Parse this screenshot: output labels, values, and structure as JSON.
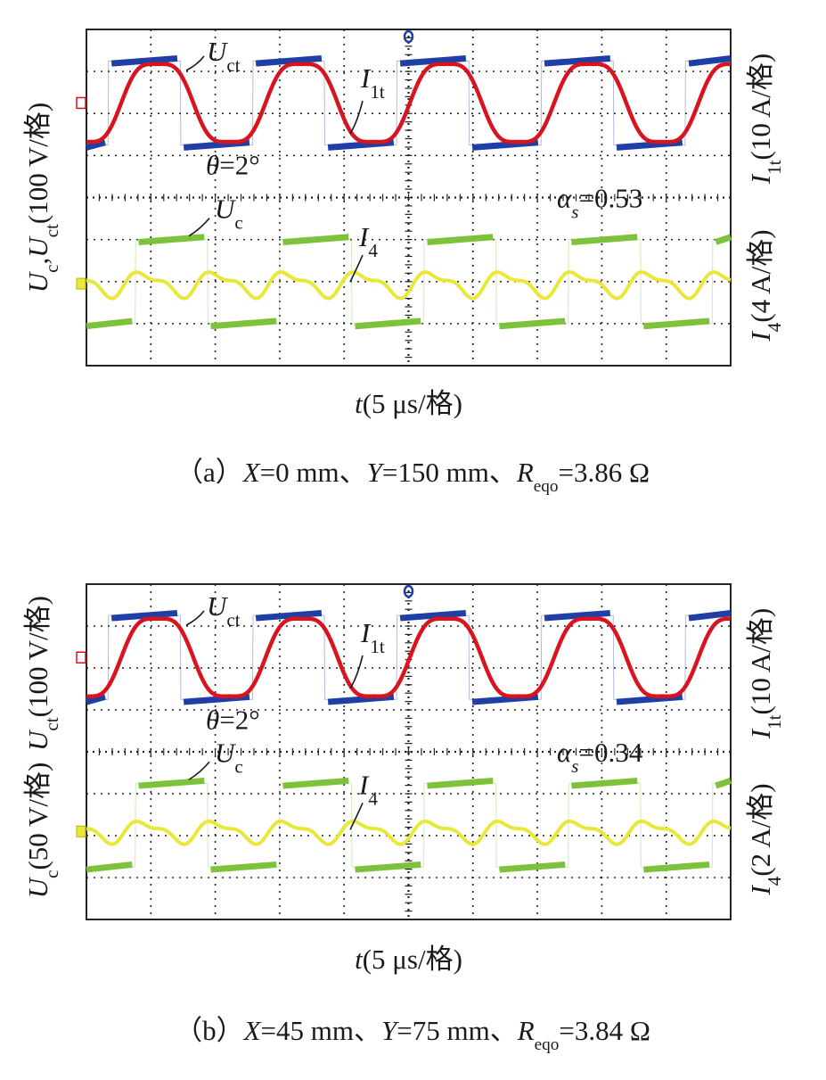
{
  "chart_data": [
    {
      "type": "line",
      "panel": "a",
      "caption": {
        "prefix": "（a）",
        "x_var": "X",
        "x_val": "=0 mm、",
        "y_var": "Y",
        "y_val": "=150 mm、",
        "r_var": "R",
        "r_sub": "eqo",
        "r_val": "=3.86 Ω"
      },
      "xlabel": {
        "var": "t",
        "unit": "(5 μs/格)"
      },
      "left_axis_label": "U_c,U_ct(100 V/格)",
      "left_axis_parts": [
        {
          "t": "U",
          "it": true
        },
        {
          "t": "c",
          "sub": true
        },
        {
          "t": ",",
          "it": false
        },
        {
          "t": "U",
          "it": true
        },
        {
          "t": "ct",
          "sub": true
        },
        {
          "t": "(100 V/格)",
          "it": false
        }
      ],
      "right_axis_upper": "I_1t(10 A/格)",
      "right_axis_upper_parts": [
        {
          "t": "I",
          "it": true
        },
        {
          "t": "1t",
          "sub": true
        },
        {
          "t": "(10 A/格)",
          "it": false
        }
      ],
      "right_axis_lower": "I_4(4 A/格)",
      "right_axis_lower_parts": [
        {
          "t": "I",
          "it": true
        },
        {
          "t": "4",
          "sub": true
        },
        {
          "t": "(4 A/格)",
          "it": false
        }
      ],
      "time_per_div_us": 5,
      "divisions": {
        "x": 10,
        "y": 8
      },
      "angle_label": {
        "sym": "θ",
        "val": "=2°"
      },
      "alpha_label": {
        "sym": "α",
        "sub": "s",
        "val": "=0.53"
      },
      "series": [
        {
          "name": "U_ct",
          "label_main": "U",
          "label_sub": "ct",
          "color": "#1f3fa6",
          "shape": "square",
          "period_div": 2.24,
          "phase_div": -0.18,
          "high_div": 3.25,
          "low_div": 1.25,
          "rise_ratio": 0.5
        },
        {
          "name": "I_1t",
          "label_main": "I",
          "label_sub": "1t",
          "color": "#d8141e",
          "shape": "sine",
          "period_div": 2.24,
          "phase_div": 0.02,
          "center_div": 2.25,
          "amplitude_div": 1.05
        },
        {
          "name": "U_c",
          "label_main": "U",
          "label_sub": "c",
          "color": "#7cc23a",
          "shape": "square",
          "period_div": 2.24,
          "phase_div": 0.24,
          "high_div": -1.0,
          "low_div": -3.0,
          "rise_ratio": 0.5
        },
        {
          "name": "I_4",
          "label_main": "I",
          "label_sub": "4",
          "color": "#e8e83a",
          "shape": "ripple",
          "period_div": 1.12,
          "phase_div": 0.1,
          "center_div": -2.05,
          "amplitude_div": 0.32
        }
      ]
    },
    {
      "type": "line",
      "panel": "b",
      "caption": {
        "prefix": "（b）",
        "x_var": "X",
        "x_val": "=45 mm、",
        "y_var": "Y",
        "y_val": "=75 mm、",
        "r_var": "R",
        "r_sub": "eqo",
        "r_val": "=3.84 Ω"
      },
      "xlabel": {
        "var": "t",
        "unit": "(5 μs/格)"
      },
      "left_axis_label": "U_c(50 V/格) U_ct(100 V/格)",
      "left_axis_lower_parts": [
        {
          "t": "U",
          "it": true
        },
        {
          "t": "c",
          "sub": true
        },
        {
          "t": "(50 V/格)",
          "it": false
        }
      ],
      "left_axis_upper_parts": [
        {
          "t": "U",
          "it": true
        },
        {
          "t": "ct",
          "sub": true
        },
        {
          "t": "(100 V/格)",
          "it": false
        }
      ],
      "right_axis_upper": "I_1t(10 A/格)",
      "right_axis_upper_parts": [
        {
          "t": "I",
          "it": true
        },
        {
          "t": "1t",
          "sub": true
        },
        {
          "t": "(10 A/格)",
          "it": false
        }
      ],
      "right_axis_lower": "I_4(2 A/格)",
      "right_axis_lower_parts": [
        {
          "t": "I",
          "it": true
        },
        {
          "t": "4",
          "sub": true
        },
        {
          "t": "(2 A/格)",
          "it": false
        }
      ],
      "time_per_div_us": 5,
      "divisions": {
        "x": 10,
        "y": 8
      },
      "angle_label": {
        "sym": "θ",
        "val": "=2°"
      },
      "alpha_label": {
        "sym": "α",
        "sub": "s",
        "val": "=0.34"
      },
      "series": [
        {
          "name": "U_ct",
          "label_main": "U",
          "label_sub": "ct",
          "color": "#1f3fa6",
          "shape": "square",
          "period_div": 2.24,
          "phase_div": -0.18,
          "high_div": 3.25,
          "low_div": 1.25,
          "rise_ratio": 0.5
        },
        {
          "name": "I_1t",
          "label_main": "I",
          "label_sub": "1t",
          "color": "#d8141e",
          "shape": "sine",
          "period_div": 2.24,
          "phase_div": 0.02,
          "center_div": 2.25,
          "amplitude_div": 1.05
        },
        {
          "name": "U_c",
          "label_main": "U",
          "label_sub": "c",
          "color": "#7cc23a",
          "shape": "square",
          "period_div": 2.24,
          "phase_div": 0.24,
          "high_div": -0.75,
          "low_div": -2.75,
          "rise_ratio": 0.5
        },
        {
          "name": "I_4",
          "label_main": "I",
          "label_sub": "4",
          "color": "#e8e83a",
          "shape": "ripple",
          "period_div": 1.12,
          "phase_div": 0.1,
          "center_div": -1.9,
          "amplitude_div": 0.28
        }
      ]
    }
  ]
}
